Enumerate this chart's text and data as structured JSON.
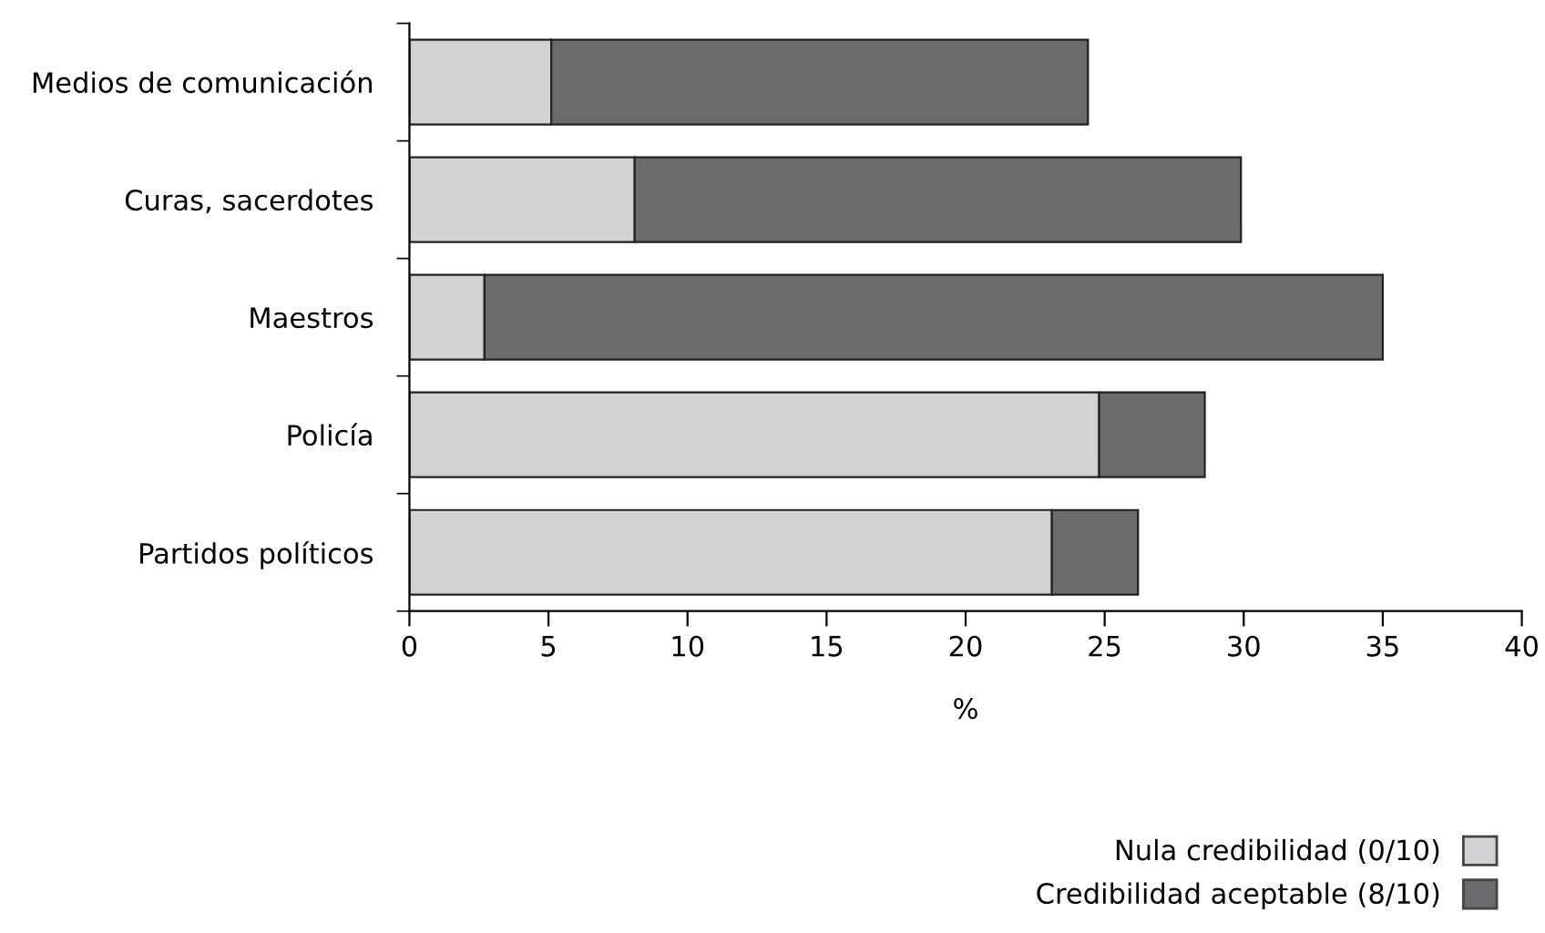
{
  "chart_data": {
    "type": "bar",
    "orientation": "horizontal",
    "stacked": true,
    "xlabel": "%",
    "categories": [
      "Medios de comunicación",
      "Curas, sacerdotes",
      "Maestros",
      "Policía",
      "Partidos políticos"
    ],
    "series": [
      {
        "name": "Nula credibilidad (0/10)",
        "color": "#d1d2d4",
        "values": [
          5.1,
          8.1,
          2.7,
          24.8,
          23.1
        ]
      },
      {
        "name": "Credibilidad aceptable (8/10)",
        "color": "#6b6b6d",
        "values": [
          19.3,
          21.8,
          32.3,
          3.8,
          3.1
        ]
      }
    ],
    "xlim": [
      0,
      40
    ],
    "xticks": [
      0,
      5,
      10,
      15,
      20,
      25,
      30,
      35,
      40
    ],
    "grid": false,
    "legend": "bottom right"
  }
}
